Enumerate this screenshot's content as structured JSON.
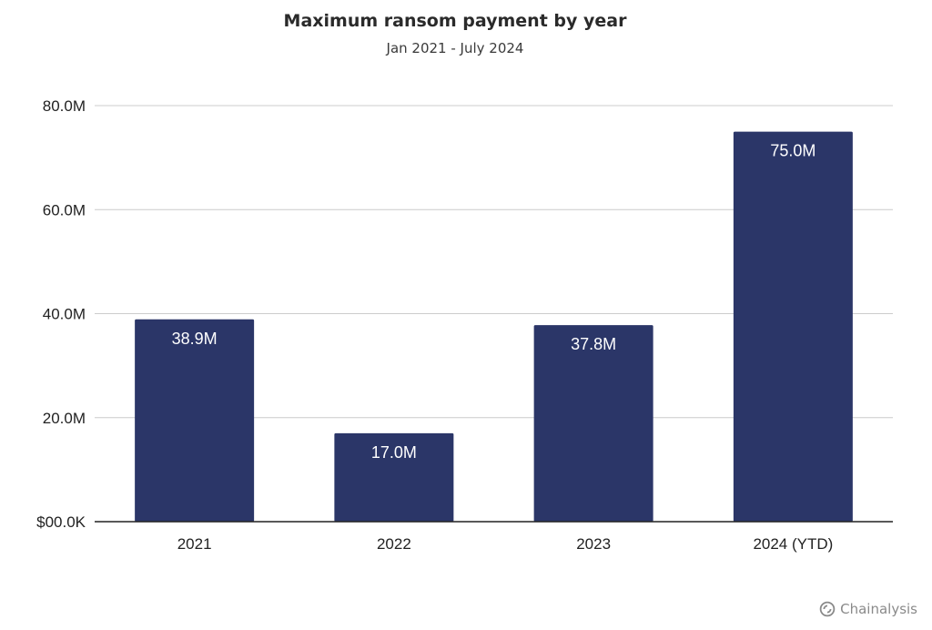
{
  "chart_data": {
    "type": "bar",
    "title": "Maximum ransom payment by year",
    "subtitle": "Jan 2021 - July 2024",
    "categories": [
      "2021",
      "2022",
      "2023",
      "2024 (YTD)"
    ],
    "values": [
      38900000,
      17000000,
      37800000,
      75000000
    ],
    "data_labels": [
      "38.9M",
      "17.0M",
      "37.8M",
      "75.0M"
    ],
    "ylim": [
      0,
      80000000
    ],
    "y_ticks": [
      0,
      20000000,
      40000000,
      60000000,
      80000000
    ],
    "y_tick_labels": [
      "$00.0K",
      "20.0M",
      "40.0M",
      "60.0M",
      "80.0M"
    ],
    "grid": true,
    "bar_color": "#2b3668",
    "data_label_color": "#ffffff",
    "grid_color": "#cccccc"
  },
  "brand": {
    "name": "Chainalysis",
    "icon": "chainalysis-logo-icon"
  }
}
